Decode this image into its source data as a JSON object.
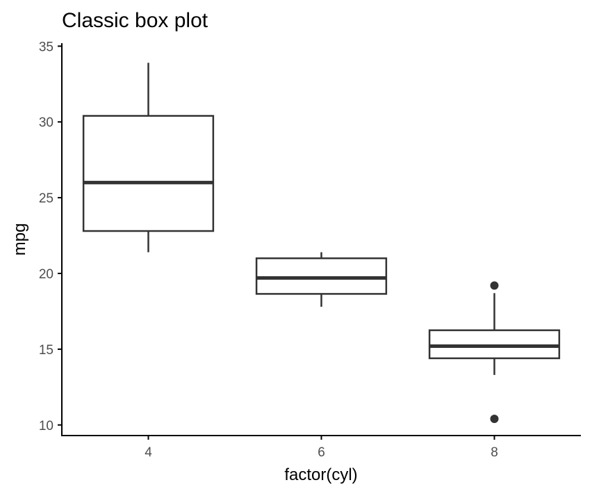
{
  "chart_data": {
    "type": "box",
    "title": "Classic box plot",
    "xlabel": "factor(cyl)",
    "ylabel": "mpg",
    "categories": [
      "4",
      "6",
      "8"
    ],
    "ylim": [
      9.3,
      35.2
    ],
    "yticks": [
      10,
      15,
      20,
      25,
      30,
      35
    ],
    "grid": false,
    "legend": "none",
    "boxes": [
      {
        "category": "4",
        "whisker_low": 21.4,
        "q1": 22.8,
        "median": 26.0,
        "q3": 30.4,
        "whisker_high": 33.9,
        "outliers": []
      },
      {
        "category": "6",
        "whisker_low": 17.8,
        "q1": 18.65,
        "median": 19.7,
        "q3": 21.0,
        "whisker_high": 21.4,
        "outliers": []
      },
      {
        "category": "8",
        "whisker_low": 13.3,
        "q1": 14.4,
        "median": 15.2,
        "q3": 16.25,
        "whisker_high": 18.7,
        "outliers": [
          19.2,
          10.4
        ]
      }
    ],
    "colors": {
      "box_stroke": "#333333",
      "box_fill": "#ffffff",
      "axis": "#000000",
      "tick_text": "#4d4d4d"
    }
  }
}
